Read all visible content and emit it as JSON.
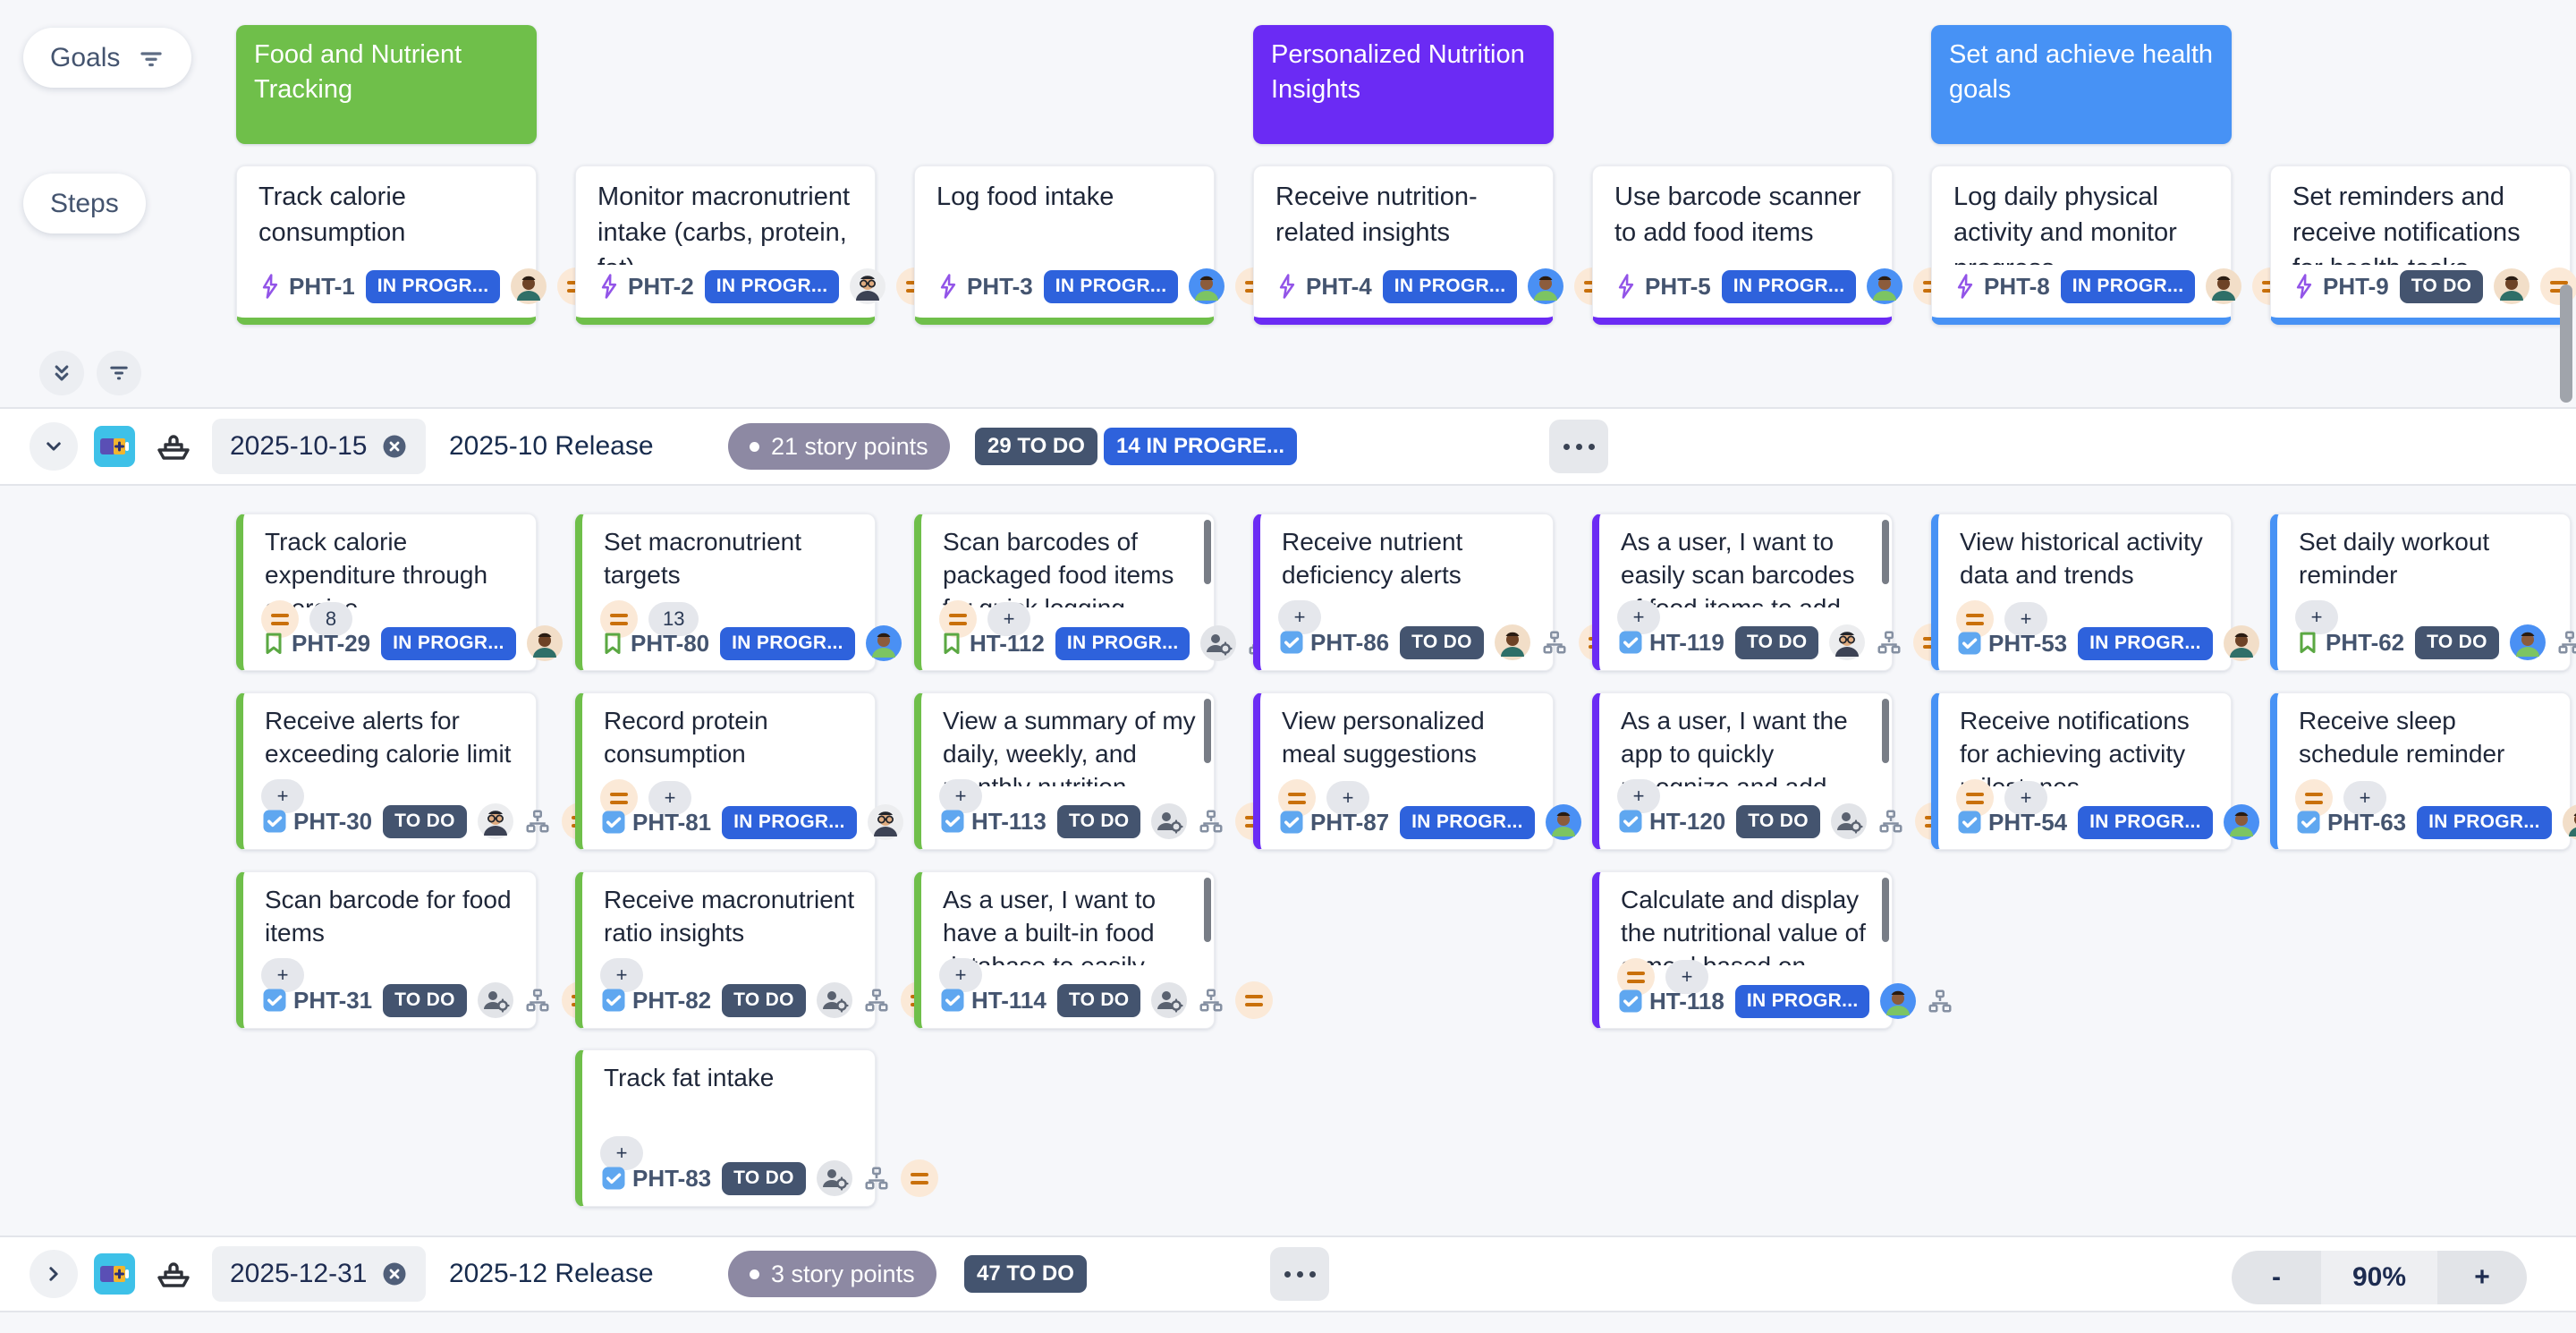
{
  "colors": {
    "goal_green": "#6FBF4A",
    "goal_purple": "#6B2BF4",
    "goal_blue": "#4792F5",
    "status_in_progress": "#2E62DC",
    "status_todo": "#44546F",
    "priority_orange": "#C9700A"
  },
  "rail": {
    "goals_label": "Goals",
    "steps_label": "Steps"
  },
  "goals": [
    {
      "label": "Food and Nutrient Tracking",
      "accent": "green",
      "col": 1
    },
    {
      "label": "Personalized Nutrition Insights",
      "accent": "purple",
      "col": 4
    },
    {
      "label": "Set and achieve health goals",
      "accent": "blue",
      "col": 6
    }
  ],
  "steps": [
    {
      "col": 1,
      "title": "Track calorie consumption",
      "key": "PHT-1",
      "status": "IN PROGR...",
      "status_type": "progress",
      "avatar": "a1",
      "accent": "green"
    },
    {
      "col": 2,
      "title": "Monitor macronutrient intake (carbs, protein, fat)",
      "key": "PHT-2",
      "status": "IN PROGR...",
      "status_type": "progress",
      "avatar": "a2",
      "accent": "green"
    },
    {
      "col": 3,
      "title": "Log food intake",
      "key": "PHT-3",
      "status": "IN PROGR...",
      "status_type": "progress",
      "avatar": "a3",
      "accent": "green"
    },
    {
      "col": 4,
      "title": "Receive nutrition-related insights",
      "key": "PHT-4",
      "status": "IN PROGR...",
      "status_type": "progress",
      "avatar": "a3",
      "accent": "purple"
    },
    {
      "col": 5,
      "title": "Use barcode scanner to add food items",
      "key": "PHT-5",
      "status": "IN PROGR...",
      "status_type": "progress",
      "avatar": "a3",
      "accent": "purple"
    },
    {
      "col": 6,
      "title": "Log daily physical activity and monitor progress",
      "key": "PHT-8",
      "status": "IN PROGR...",
      "status_type": "progress",
      "avatar": "a1",
      "accent": "blue"
    },
    {
      "col": 7,
      "title": "Set reminders and receive notifications for health tasks",
      "key": "PHT-9",
      "status": "TO DO",
      "status_type": "todo",
      "avatar": "a1",
      "accent": "blue"
    }
  ],
  "sprints": [
    {
      "date": "2025-10-15",
      "name": "2025-10 Release",
      "points_label": "21 story points",
      "badges": [
        {
          "text": "29 TO DO",
          "type": "todo"
        },
        {
          "text": "14 IN PROGRE...",
          "type": "progress"
        }
      ],
      "cards": [
        {
          "row": 1,
          "col": 1,
          "title": "Track calorie expenditure through exercise",
          "key": "PHT-29",
          "icon": "story",
          "points": "8",
          "pri": "mid",
          "status": "IN PROGR...",
          "status_type": "progress",
          "avatar": "a1",
          "accent": "green",
          "scroll": false
        },
        {
          "row": 1,
          "col": 2,
          "title": "Set macronutrient targets",
          "key": "PHT-80",
          "icon": "story",
          "points": "13",
          "pri": "mid",
          "status": "IN PROGR...",
          "status_type": "progress",
          "avatar": "a3",
          "accent": "green",
          "scroll": false
        },
        {
          "row": 1,
          "col": 3,
          "title": "Scan barcodes of packaged food items for quick logging.",
          "key": "HT-112",
          "icon": "story",
          "points": "+",
          "pri": "mid",
          "status": "IN PROGR...",
          "status_type": "progress",
          "avatar": "gear",
          "accent": "green",
          "scroll": true
        },
        {
          "row": 1,
          "col": 4,
          "title": "Receive nutrient deficiency alerts",
          "key": "PHT-86",
          "icon": "task",
          "points": "+",
          "pri": "end",
          "status": "TO DO",
          "status_type": "todo",
          "avatar": "a1",
          "accent": "purple",
          "scroll": false
        },
        {
          "row": 1,
          "col": 5,
          "title": "As a user, I want to easily scan barcodes of food items to add them to my nutrition",
          "key": "HT-119",
          "icon": "task",
          "points": "+",
          "pri": "end",
          "status": "TO DO",
          "status_type": "todo",
          "avatar": "a2",
          "accent": "purple",
          "scroll": true
        },
        {
          "row": 1,
          "col": 6,
          "title": "View historical activity data and trends",
          "key": "PHT-53",
          "icon": "task",
          "points": "+",
          "pri": "mid",
          "status": "IN PROGR...",
          "status_type": "progress",
          "avatar": "a1",
          "accent": "blue",
          "scroll": false
        },
        {
          "row": 1,
          "col": 7,
          "title": "Set daily workout reminder",
          "key": "PHT-62",
          "icon": "story",
          "points": "+",
          "pri": "end",
          "status": "TO DO",
          "status_type": "todo",
          "avatar": "a3",
          "accent": "blue",
          "scroll": false
        },
        {
          "row": 2,
          "col": 1,
          "title": "Receive alerts for exceeding calorie limit",
          "key": "PHT-30",
          "icon": "task",
          "points": "+",
          "pri": "end",
          "status": "TO DO",
          "status_type": "todo",
          "avatar": "a2",
          "accent": "green",
          "scroll": false
        },
        {
          "row": 2,
          "col": 2,
          "title": "Record protein consumption",
          "key": "PHT-81",
          "icon": "task",
          "points": "+",
          "pri": "mid",
          "status": "IN PROGR...",
          "status_type": "progress",
          "avatar": "a2",
          "accent": "green",
          "scroll": false
        },
        {
          "row": 2,
          "col": 3,
          "title": "View a summary of my daily, weekly, and monthly nutrition intake for better",
          "key": "HT-113",
          "icon": "task",
          "points": "+",
          "pri": "end",
          "status": "TO DO",
          "status_type": "todo",
          "avatar": "gear",
          "accent": "green",
          "scroll": true
        },
        {
          "row": 2,
          "col": 4,
          "title": "View personalized meal suggestions",
          "key": "PHT-87",
          "icon": "task",
          "points": "+",
          "pri": "mid",
          "status": "IN PROGR...",
          "status_type": "progress",
          "avatar": "a3",
          "accent": "purple",
          "scroll": false
        },
        {
          "row": 2,
          "col": 5,
          "title": "As a user, I want the app to quickly recognize and add nutrition information from",
          "key": "HT-120",
          "icon": "task",
          "points": "+",
          "pri": "end",
          "status": "TO DO",
          "status_type": "todo",
          "avatar": "gear",
          "accent": "purple",
          "scroll": true
        },
        {
          "row": 2,
          "col": 6,
          "title": "Receive notifications for achieving activity milestones",
          "key": "PHT-54",
          "icon": "task",
          "points": "+",
          "pri": "mid",
          "status": "IN PROGR...",
          "status_type": "progress",
          "avatar": "a3",
          "accent": "blue",
          "scroll": false
        },
        {
          "row": 2,
          "col": 7,
          "title": "Receive sleep schedule reminder",
          "key": "PHT-63",
          "icon": "task",
          "points": "+",
          "pri": "mid",
          "status": "IN PROGR...",
          "status_type": "progress",
          "avatar": "a1",
          "accent": "blue",
          "scroll": false
        },
        {
          "row": 3,
          "col": 1,
          "title": "Scan barcode for food items",
          "key": "PHT-31",
          "icon": "task",
          "points": "+",
          "pri": "end",
          "status": "TO DO",
          "status_type": "todo",
          "avatar": "gear",
          "accent": "green",
          "scroll": false
        },
        {
          "row": 3,
          "col": 2,
          "title": "Receive macronutrient ratio insights",
          "key": "PHT-82",
          "icon": "task",
          "points": "+",
          "pri": "end",
          "status": "TO DO",
          "status_type": "todo",
          "avatar": "gear",
          "accent": "green",
          "scroll": false
        },
        {
          "row": 3,
          "col": 3,
          "title": "As a user, I want to have a built-in food database to easily search and select the",
          "key": "HT-114",
          "icon": "task",
          "points": "+",
          "pri": "end",
          "status": "TO DO",
          "status_type": "todo",
          "avatar": "gear",
          "accent": "green",
          "scroll": true
        },
        {
          "row": 3,
          "col": 5,
          "title": "Calculate and display the nutritional value of a meal based on scanned items",
          "key": "HT-118",
          "icon": "task",
          "points": "+",
          "pri": "mid",
          "status": "IN PROGR...",
          "status_type": "progress",
          "avatar": "a3",
          "accent": "purple",
          "scroll": true
        },
        {
          "row": 4,
          "col": 2,
          "title": "Track fat intake",
          "key": "PHT-83",
          "icon": "task",
          "points": "+",
          "pri": "end",
          "status": "TO DO",
          "status_type": "todo",
          "avatar": "gear",
          "accent": "green",
          "scroll": false
        }
      ]
    },
    {
      "date": "2025-12-31",
      "name": "2025-12 Release",
      "points_label": "3 story points",
      "badges": [
        {
          "text": "47 TO DO",
          "type": "todo"
        }
      ],
      "cards": []
    }
  ],
  "zoom": {
    "minus": "-",
    "level": "90%",
    "plus": "+"
  }
}
